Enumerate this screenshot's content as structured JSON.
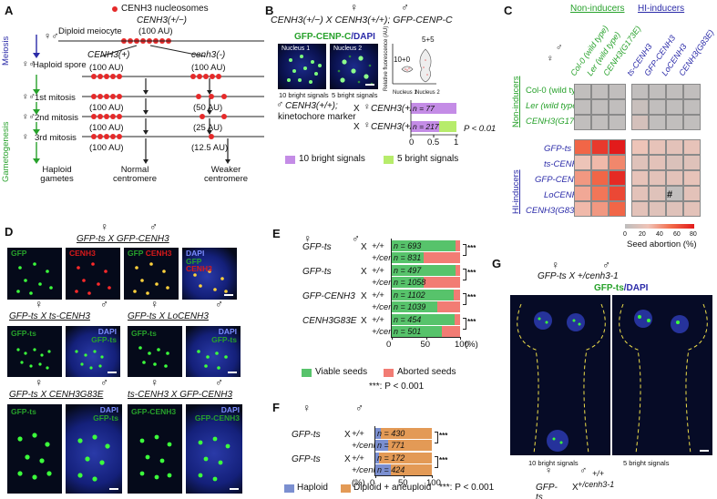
{
  "colors": {
    "green": "#27a12b",
    "blue": "#2a2aa8",
    "red": "#e52a2a",
    "lime": "#b7ec6b",
    "violet": "#c48ce6",
    "viable": "#57c36b",
    "aborted": "#f27c74",
    "haploid": "#7b8fd0",
    "diploid": "#e39a56"
  },
  "panel_labels": {
    "a": "A",
    "b": "B",
    "c": "C",
    "d": "D",
    "e": "E",
    "f": "F",
    "g": "G"
  },
  "sym": {
    "female": "♀",
    "male": "♂",
    "cross": "X",
    "female_male": "♀♂"
  },
  "panelA": {
    "legend": "CENH3 nucleosomes",
    "genotype": "CENH3(+/−)",
    "diploid": "Diploid meiocyte",
    "diploid_au": "(100 AU)",
    "meiosis": "Meiosis",
    "gametogenesis": "Gametogenesis",
    "haploid_spore": "Haploid spore",
    "allele_plus": "CENH3(+)",
    "allele_minus": "cenh3(-)",
    "steps": [
      "1st mitosis",
      "2nd mitosis",
      "3rd mitosis"
    ],
    "left_au": [
      "(100 AU)",
      "(100 AU)",
      "(100 AU)",
      "(100 AU)"
    ],
    "right_au": [
      "(100 AU)",
      "(50 AU)",
      "(25 AU)",
      "(12.5 AU)"
    ],
    "haploid_gametes": "Haploid gametes",
    "normal": "Normal centromere",
    "weaker": "Weaker centromere"
  },
  "panelB": {
    "cross": "CENH3(+/−) X CENH3(+/+); GFP-CENP-C",
    "image_title_a": "GFP-CENP-C",
    "image_title_b": "/DAPI",
    "nucleus1": "Nucleus 1",
    "nucleus2": "Nucleus 2",
    "sub1": "10 bright signals",
    "sub2": "5 bright signals",
    "violin_ylabel": "Relative fluorescence (AU)",
    "violin_top": "5+5",
    "violin_left": "10+0",
    "violin_x": [
      "Nucleus 1",
      "Nucleus 2"
    ],
    "male_label_1": "CENH3(+/+);",
    "male_label_2": "kinetochore marker",
    "female_1": "CENH3(+/+)",
    "female_2": "CENH3(+/−)",
    "n1": "n = 77",
    "n2": "n = 217",
    "ticks": [
      "0",
      "0.5",
      "1"
    ],
    "pval": "P < 0.01",
    "leg1": "10 bright signals",
    "leg2": "5 bright signals"
  },
  "panelC": {
    "header_non": "Non-inducers",
    "header_hi": "HI-inducers",
    "cols_non": [
      "Col-0 (wild type)",
      "Ler (wild type)",
      "CENH3(G173E)"
    ],
    "cols_hi": [
      "ts-CENH3",
      "GFP-CENH3",
      "LoCENH3",
      "CENH3(G83E)"
    ],
    "rows_non": [
      "Col-0 (wild type)",
      "Ler (wild type)",
      "CENH3(G173E)"
    ],
    "rows_hi": [
      "GFP-ts",
      "ts-CENH3",
      "GFP-CENH3",
      "LoCENH3",
      "CENH3(G83E)"
    ],
    "side_non": "Non-inducers",
    "side_hi": "HI-inducers",
    "hash": "#",
    "scale_ticks": [
      "0",
      "20",
      "40",
      "60",
      "80"
    ],
    "scale_label": "Seed abortion (%)"
  },
  "panelD": {
    "cross1": "GFP-ts X GFP-CENH3",
    "row1_labels": [
      "GFP",
      "CENH3",
      "GFP",
      "CENH3",
      "DAPI",
      "GFP",
      "CENH3"
    ],
    "cross2": "GFP-ts X ts-CENH3",
    "cross3": "GFP-ts X LoCENH3",
    "cross4": "GFP-ts X CENH3G83E",
    "cross5": "ts-CENH3 X GFP-CENH3",
    "gfp_ts": "GFP-ts",
    "dapi": "DAPI",
    "gfp_cenh3": "GFP-CENH3"
  },
  "panelE": {
    "female": "GFP-ts",
    "groups": [
      {
        "female": "GFP-ts",
        "males": [
          "+/+",
          "+/cenh3-1"
        ],
        "n": [
          "n = 693",
          "n = 831"
        ]
      },
      {
        "female": "GFP-ts",
        "males": [
          "+/+",
          "+/cenh3-3"
        ],
        "n": [
          "n = 497",
          "n = 1058"
        ]
      },
      {
        "female": "GFP-CENH3",
        "males": [
          "+/+",
          "+/cenh3-1"
        ],
        "n": [
          "n = 1102",
          "n = 1039"
        ]
      },
      {
        "female": "CENH3G83E",
        "males": [
          "+/+",
          "+/cenh3-1"
        ],
        "n": [
          "n = 454",
          "n = 501"
        ]
      }
    ],
    "ticks": [
      "0",
      "50",
      "100"
    ],
    "unit": "(%)",
    "stars": "***",
    "leg_viable": "Viable seeds",
    "leg_aborted": "Aborted seeds",
    "pnote": "***: P < 0.001"
  },
  "panelF": {
    "groups": [
      {
        "female": "GFP-ts",
        "males": [
          "+/+",
          "+/cenh3-1"
        ],
        "n": [
          "n = 430",
          "n = 771"
        ]
      },
      {
        "female": "GFP-ts",
        "males": [
          "+/+",
          "+/cenh3-3"
        ],
        "n": [
          "n = 172",
          "n = 424"
        ]
      }
    ],
    "ticks": [
      "0",
      "50",
      "100"
    ],
    "unit": "(%)",
    "stars": "***",
    "leg_haploid": "Haploid",
    "leg_diploid": "Diploid + aneuploid",
    "pnote": "***: P < 0.001"
  },
  "panelG": {
    "cross": "GFP-ts X +/cenh3-1",
    "img_title_a": "GFP-ts",
    "img_title_b": "/DAPI",
    "sub1": "10 bright signals",
    "sub2": "5 bright signals",
    "female": "GFP-ts",
    "males": [
      "+/+",
      "+/cenh3-1"
    ],
    "n": [
      "n = 96",
      "n = 106"
    ],
    "ticks": [
      "0",
      "0.5",
      "1"
    ],
    "pval": "P < 0.01",
    "leg1": "10 bright signals",
    "leg2": "5 bright signals"
  },
  "chart_data": [
    {
      "type": "bar",
      "panel": "B",
      "orientation": "horizontal",
      "stacked": true,
      "categories": [
        "CENH3(+/+)",
        "CENH3(+/−)"
      ],
      "series": [
        {
          "name": "10 bright signals",
          "values": [
            1.0,
            0.62
          ]
        },
        {
          "name": "5 bright signals",
          "values": [
            0.0,
            0.38
          ]
        }
      ],
      "xlim": [
        0,
        1
      ]
    },
    {
      "type": "heatmap",
      "panel": "C",
      "x": [
        "Col-0 (wild type)",
        "Ler (wild type)",
        "CENH3(G173E)",
        "ts-CENH3",
        "GFP-CENH3",
        "LoCENH3",
        "CENH3(G83E)"
      ],
      "y": [
        "Col-0 (wild type)",
        "Ler (wild type)",
        "CENH3(G173E)",
        "GFP-ts",
        "ts-CENH3",
        "GFP-CENH3",
        "LoCENH3",
        "CENH3(G83E)"
      ],
      "values": [
        [
          2,
          2,
          2,
          2,
          2,
          2,
          2
        ],
        [
          2,
          2,
          2,
          6,
          2,
          2,
          2
        ],
        [
          2,
          2,
          2,
          12,
          2,
          2,
          2
        ],
        [
          55,
          70,
          85,
          25,
          22,
          20,
          22
        ],
        [
          25,
          30,
          45,
          18,
          20,
          15,
          18
        ],
        [
          40,
          55,
          75,
          22,
          20,
          20,
          22
        ],
        [
          35,
          50,
          65,
          20,
          18,
          2,
          20
        ],
        [
          30,
          40,
          55,
          20,
          18,
          18,
          20
        ]
      ],
      "scale": [
        0,
        80
      ]
    },
    {
      "type": "bar",
      "panel": "E",
      "orientation": "horizontal",
      "stacked": true,
      "categories": [
        "GFP-ts × +/+",
        "GFP-ts × +/cenh3-1",
        "GFP-ts × +/+",
        "GFP-ts × +/cenh3-3",
        "GFP-CENH3 × +/+",
        "GFP-CENH3 × +/cenh3-1",
        "CENH3G83E × +/+",
        "CENH3G83E × +/cenh3-1"
      ],
      "series": [
        {
          "name": "Viable seeds",
          "values": [
            93,
            47,
            93,
            47,
            90,
            66,
            92,
            73
          ]
        },
        {
          "name": "Aborted seeds",
          "values": [
            7,
            53,
            7,
            53,
            10,
            34,
            8,
            27
          ]
        }
      ],
      "xlim": [
        0,
        100
      ]
    },
    {
      "type": "bar",
      "panel": "F",
      "orientation": "horizontal",
      "stacked": true,
      "categories": [
        "GFP-ts × +/+",
        "GFP-ts × +/cenh3-1",
        "GFP-ts × +/+",
        "GFP-ts × +/cenh3-3"
      ],
      "series": [
        {
          "name": "Haploid",
          "values": [
            9,
            22,
            7,
            28
          ]
        },
        {
          "name": "Diploid + aneuploid",
          "values": [
            91,
            78,
            93,
            72
          ]
        }
      ],
      "xlim": [
        0,
        100
      ]
    },
    {
      "type": "bar",
      "panel": "G",
      "orientation": "horizontal",
      "stacked": true,
      "categories": [
        "GFP-ts × +/+",
        "GFP-ts × +/cenh3-1"
      ],
      "series": [
        {
          "name": "10 bright signals",
          "values": [
            1.0,
            0.79
          ]
        },
        {
          "name": "5 bright signals",
          "values": [
            0.0,
            0.21
          ]
        }
      ],
      "xlim": [
        0,
        1
      ]
    }
  ]
}
